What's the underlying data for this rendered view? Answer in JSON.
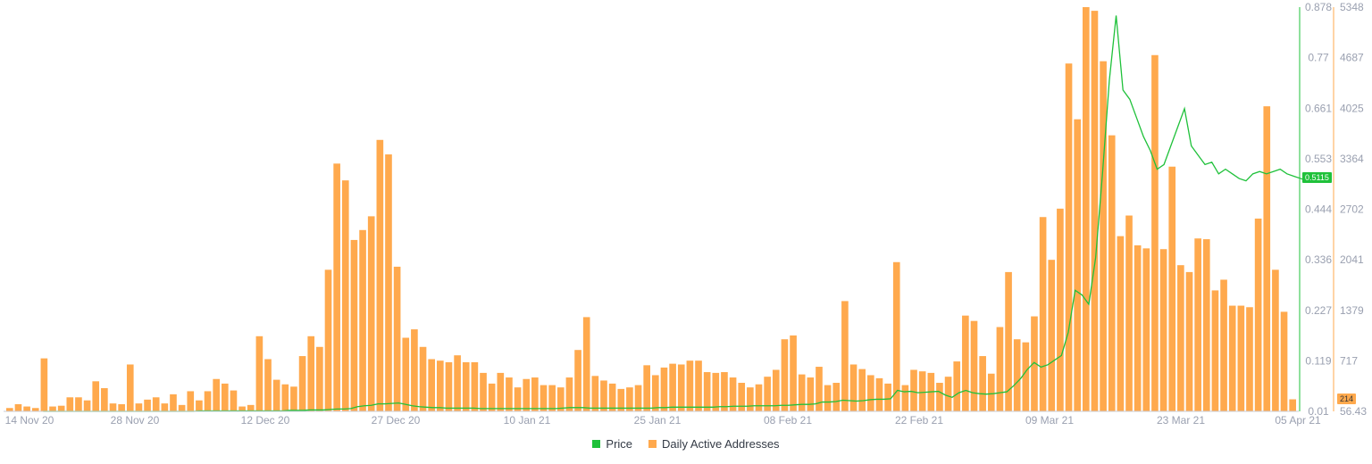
{
  "chart_data": {
    "type": "bar",
    "x_ticks": [
      "14 Nov 20",
      "28 Nov 20",
      "12 Dec 20",
      "27 Dec 20",
      "10 Jan 21",
      "25 Jan 21",
      "08 Feb 21",
      "22 Feb 21",
      "09 Mar 21",
      "23 Mar 21",
      "05 Apr 21"
    ],
    "y_left_ticks": [
      "0.878",
      "0.77",
      "0.661",
      "0.553",
      "0.444",
      "0.336",
      "0.227",
      "0.119",
      "0.01"
    ],
    "y_right_ticks": [
      "5348",
      "4687",
      "4025",
      "3364",
      "2702",
      "2041",
      "1379",
      "717",
      "56.43"
    ],
    "y_left_range": [
      0.01,
      0.878
    ],
    "y_right_range": [
      56.43,
      5348
    ],
    "series": [
      {
        "name": "Price",
        "axis": "left",
        "color": "#1fc13a",
        "current_value_label": "0.5115",
        "values": [
          0.01,
          0.01,
          0.01,
          0.01,
          0.01,
          0.01,
          0.01,
          0.01,
          0.01,
          0.01,
          0.01,
          0.01,
          0.01,
          0.01,
          0.01,
          0.01,
          0.01,
          0.01,
          0.01,
          0.01,
          0.01,
          0.01,
          0.01,
          0.011,
          0.011,
          0.011,
          0.011,
          0.011,
          0.011,
          0.011,
          0.011,
          0.011,
          0.011,
          0.011,
          0.011,
          0.011,
          0.012,
          0.012,
          0.012,
          0.013,
          0.013,
          0.013,
          0.014,
          0.015,
          0.015,
          0.016,
          0.02,
          0.022,
          0.023,
          0.026,
          0.026,
          0.027,
          0.028,
          0.025,
          0.022,
          0.02,
          0.019,
          0.018,
          0.018,
          0.017,
          0.017,
          0.017,
          0.017,
          0.017,
          0.016,
          0.016,
          0.016,
          0.016,
          0.016,
          0.016,
          0.016,
          0.016,
          0.016,
          0.016,
          0.016,
          0.016,
          0.017,
          0.018,
          0.018,
          0.018,
          0.017,
          0.017,
          0.017,
          0.017,
          0.017,
          0.017,
          0.017,
          0.017,
          0.017,
          0.017,
          0.018,
          0.018,
          0.019,
          0.019,
          0.019,
          0.019,
          0.019,
          0.019,
          0.019,
          0.02,
          0.02,
          0.021,
          0.021,
          0.021,
          0.022,
          0.022,
          0.022,
          0.022,
          0.023,
          0.023,
          0.024,
          0.025,
          0.025,
          0.026,
          0.03,
          0.03,
          0.031,
          0.034,
          0.033,
          0.032,
          0.033,
          0.035,
          0.036,
          0.036,
          0.037,
          0.055,
          0.052,
          0.053,
          0.05,
          0.051,
          0.052,
          0.053,
          0.045,
          0.04,
          0.05,
          0.055,
          0.05,
          0.048,
          0.047,
          0.048,
          0.05,
          0.052,
          0.065,
          0.08,
          0.1,
          0.115,
          0.105,
          0.11,
          0.12,
          0.13,
          0.18,
          0.27,
          0.26,
          0.24,
          0.34,
          0.52,
          0.72,
          0.86,
          0.7,
          0.68,
          0.64,
          0.6,
          0.57,
          0.53,
          0.54,
          0.58,
          0.62,
          0.66,
          0.58,
          0.56,
          0.54,
          0.545,
          0.52,
          0.53,
          0.52,
          0.51,
          0.505,
          0.52,
          0.525,
          0.52,
          0.525,
          0.53,
          0.52,
          0.515,
          0.51,
          0.505,
          0.505,
          0.51,
          0.515
        ]
      },
      {
        "name": "Daily Active Addresses",
        "axis": "right",
        "color": "#ffa94d",
        "current_value_label": "214",
        "values": [
          100,
          150,
          120,
          100,
          750,
          120,
          130,
          240,
          240,
          200,
          450,
          360,
          160,
          150,
          670,
          160,
          210,
          240,
          160,
          280,
          140,
          320,
          200,
          320,
          480,
          420,
          330,
          120,
          140,
          1040,
          740,
          470,
          410,
          380,
          780,
          1040,
          900,
          1910,
          3300,
          3080,
          2300,
          2430,
          2610,
          3610,
          3420,
          1950,
          1020,
          1130,
          900,
          740,
          720,
          700,
          790,
          700,
          700,
          560,
          420,
          560,
          500,
          370,
          480,
          500,
          400,
          400,
          370,
          500,
          860,
          1290,
          520,
          460,
          420,
          350,
          370,
          400,
          660,
          530,
          630,
          680,
          670,
          720,
          720,
          570,
          560,
          570,
          500,
          430,
          370,
          410,
          510,
          600,
          1000,
          1050,
          540,
          500,
          640,
          400,
          430,
          1500,
          670,
          610,
          530,
          490,
          420,
          2010,
          400,
          600,
          580,
          560,
          430,
          510,
          710,
          1310,
          1240,
          780,
          550,
          1160,
          1880,
          1000,
          960,
          1300,
          2600,
          2040,
          2710,
          4610,
          3880,
          5400,
          5300,
          4640,
          3670,
          2350,
          2620,
          2230,
          2190,
          4720,
          2180,
          3260,
          1970,
          1880,
          2320,
          2310,
          1640,
          1780,
          1440,
          1440,
          1420,
          2580,
          4050,
          1910,
          1360,
          214
        ]
      }
    ],
    "legend": [
      "Price",
      "Daily Active Addresses"
    ],
    "legend_position": "bottom-center",
    "grid": false
  }
}
